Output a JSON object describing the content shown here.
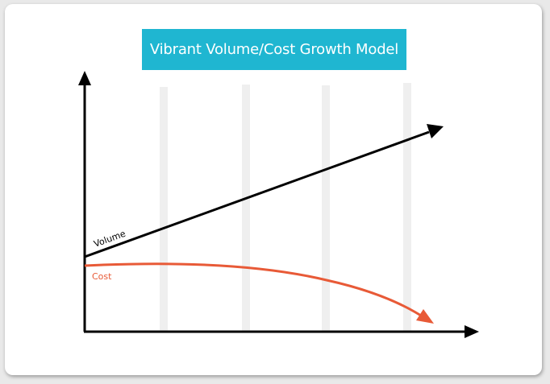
{
  "title": "Vibrant Volume/Cost Growth Model",
  "colors": {
    "title_background": "#1fb6d1",
    "title_text": "#ffffff",
    "axes": "#000000",
    "volume_line": "#000000",
    "cost_line": "#e85a37",
    "guide_bars": "#efefef"
  },
  "chart_data": {
    "type": "line",
    "series": [
      {
        "name": "Volume",
        "trend": "rising"
      },
      {
        "name": "Cost",
        "trend": "flat then falling"
      }
    ],
    "guide_bars": 4
  },
  "labels": {
    "volume": "Volume",
    "cost": "Cost"
  }
}
